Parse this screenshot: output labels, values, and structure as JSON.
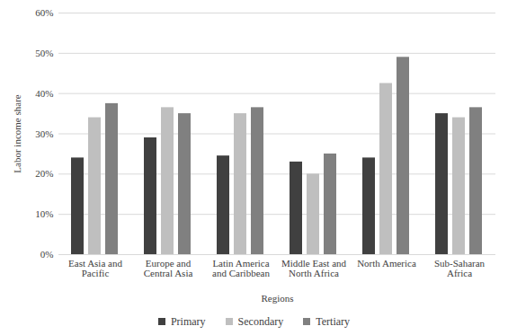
{
  "chart_data": {
    "type": "bar",
    "x_label": "Regions",
    "y_label": "Labor income share",
    "categories": [
      "East Asia and Pacific",
      "Europe and Central Asia",
      "Latin America and Caribbean",
      "Middle East and North Africa",
      "North America",
      "Sub-Saharan Africa"
    ],
    "series": [
      {
        "name": "Primary",
        "color": "#404040",
        "values": [
          24,
          29,
          24.5,
          23,
          24,
          35
        ]
      },
      {
        "name": "Secondary",
        "color": "#bfbfbf",
        "values": [
          34,
          36.5,
          35,
          20,
          42.5,
          34
        ]
      },
      {
        "name": "Tertiary",
        "color": "#808080",
        "values": [
          37.5,
          35,
          36.5,
          25,
          49,
          36.5
        ]
      }
    ],
    "ylim": [
      0,
      60
    ],
    "yticks": [
      {
        "value": 0,
        "label": "0%"
      },
      {
        "value": 10,
        "label": "10%"
      },
      {
        "value": 20,
        "label": "20%"
      },
      {
        "value": 30,
        "label": "30%"
      },
      {
        "value": 40,
        "label": "40%"
      },
      {
        "value": 50,
        "label": "50%"
      },
      {
        "value": 60,
        "label": "60%"
      }
    ],
    "grid": true,
    "legend": "bottom"
  }
}
